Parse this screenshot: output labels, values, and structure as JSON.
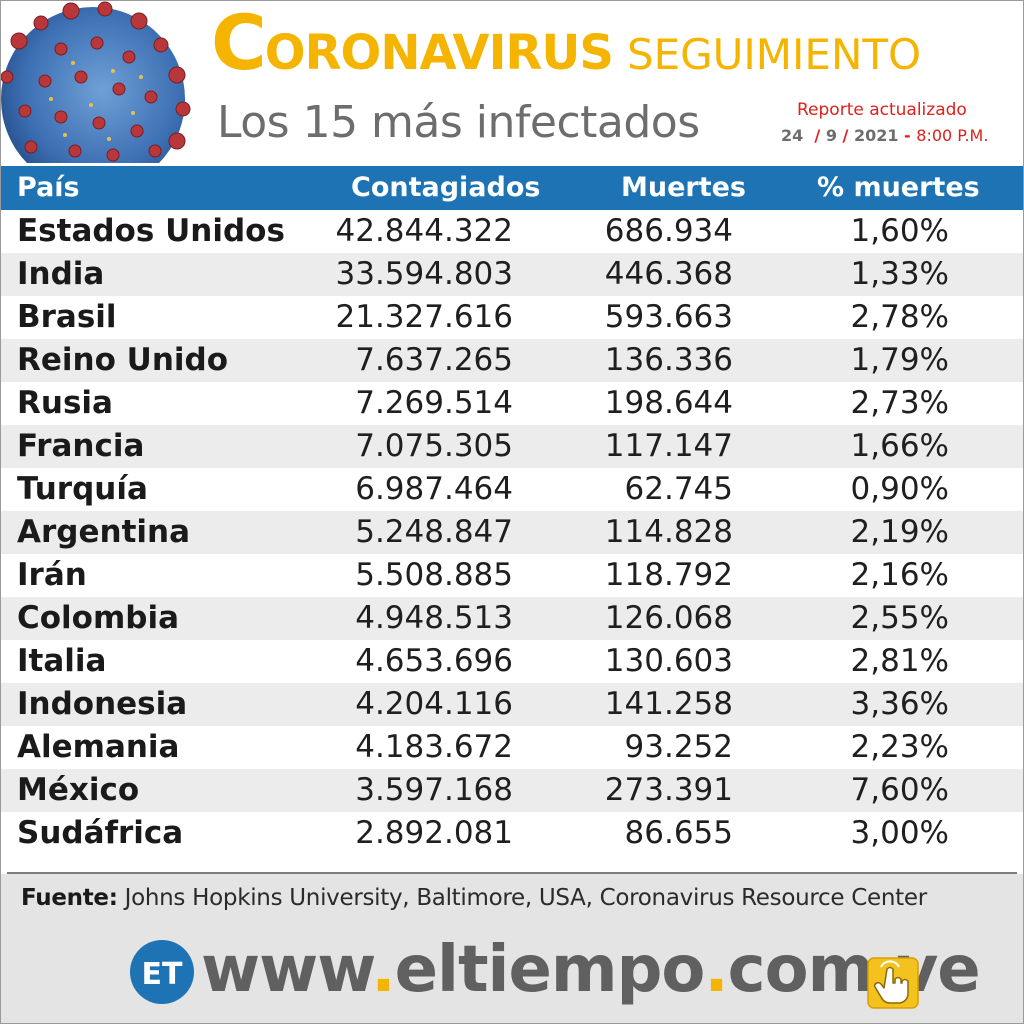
{
  "header": {
    "title_first_letter": "C",
    "title_rest": "ORONAVIRUS",
    "title_second": "SEGUIMIENTO",
    "subtitle": "Los 15 más infectados",
    "report_label": "Reporte actualizado",
    "report_day": "24",
    "report_month": "9",
    "report_year": "2021",
    "report_time": "8:00 P.M."
  },
  "table": {
    "headers": [
      "País",
      "Contagiados",
      "Muertes",
      "% muertes"
    ],
    "rows": [
      [
        "Estados Unidos",
        "42.844.322",
        "686.934",
        "1,60%"
      ],
      [
        "India",
        "33.594.803",
        "446.368",
        "1,33%"
      ],
      [
        "Brasil",
        "21.327.616",
        "593.663",
        "2,78%"
      ],
      [
        "Reino Unido",
        "7.637.265",
        "136.336",
        "1,79%"
      ],
      [
        "Rusia",
        "7.269.514",
        "198.644",
        "2,73%"
      ],
      [
        "Francia",
        "7.075.305",
        "117.147",
        "1,66%"
      ],
      [
        "Turquía",
        "6.987.464",
        "62.745",
        "0,90%"
      ],
      [
        "Argentina",
        "5.248.847",
        "114.828",
        "2,19%"
      ],
      [
        "Irán",
        "5.508.885",
        "118.792",
        "2,16%"
      ],
      [
        "Colombia",
        "4.948.513",
        "126.068",
        "2,55%"
      ],
      [
        "Italia",
        "4.653.696",
        "130.603",
        "2,81%"
      ],
      [
        "Indonesia",
        "4.204.116",
        "141.258",
        "3,36%"
      ],
      [
        "Alemania",
        "4.183.672",
        "93.252",
        "2,23%"
      ],
      [
        "México",
        "3.597.168",
        "273.391",
        "7,60%"
      ],
      [
        "Sudáfrica",
        "2.892.081",
        "86.655",
        "3,00%"
      ]
    ]
  },
  "footer": {
    "source_label": "Fuente:",
    "source_text": "Johns Hopkins University, Baltimore, USA, Coronavirus Resource Center",
    "logo_text": "ET",
    "site_parts": [
      "www",
      ".",
      "eltiempo",
      ".",
      "com",
      ".",
      "ve"
    ]
  },
  "colors": {
    "accent_yellow": "#f4b400",
    "header_blue": "#1d73b3",
    "report_red": "#e0201b",
    "row_alt": "#ececec"
  },
  "icons": {
    "virus": "coronavirus-illustration",
    "hand": "pointing-hand-icon"
  }
}
